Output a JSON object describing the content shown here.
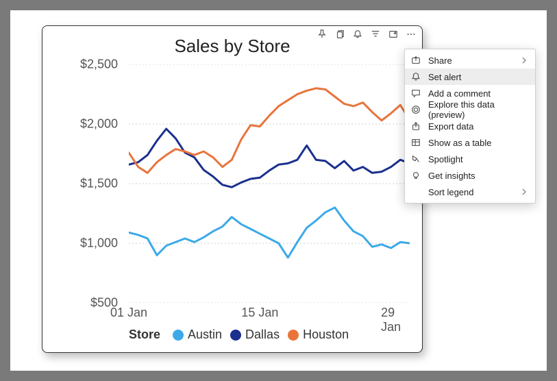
{
  "chart": {
    "title": "Sales by Store",
    "type": "line",
    "background_color": "#ffffff",
    "grid_color": "#cccccc",
    "grid_dash": "2,3",
    "title_fontsize": 26,
    "axis_label_fontsize": 18,
    "axis_label_color": "#555555",
    "y": {
      "min": 500,
      "max": 2500,
      "ticks": [
        500,
        1000,
        1500,
        2000,
        2500
      ],
      "tick_labels": [
        "$500",
        "$1,000",
        "$1,500",
        "$2,000",
        "$2,500"
      ]
    },
    "x": {
      "min": 1,
      "max": 31,
      "ticks": [
        1,
        15,
        29
      ],
      "tick_labels": [
        "01 Jan",
        "15 Jan",
        "29 Jan"
      ]
    },
    "series": [
      {
        "name": "Austin",
        "color": "#3ba9e8",
        "line_width": 3,
        "values": [
          1090,
          1070,
          1040,
          900,
          980,
          1010,
          1040,
          1010,
          1050,
          1100,
          1140,
          1220,
          1160,
          1120,
          1080,
          1040,
          1000,
          880,
          1010,
          1130,
          1190,
          1260,
          1300,
          1190,
          1100,
          1060,
          970,
          990,
          960,
          1010,
          1000
        ]
      },
      {
        "name": "Dallas",
        "color": "#1a2f8e",
        "line_width": 3,
        "values": [
          1660,
          1680,
          1740,
          1860,
          1960,
          1880,
          1760,
          1720,
          1615,
          1560,
          1490,
          1470,
          1510,
          1540,
          1550,
          1610,
          1660,
          1670,
          1700,
          1820,
          1700,
          1690,
          1630,
          1690,
          1610,
          1640,
          1590,
          1600,
          1640,
          1700,
          1670
        ]
      },
      {
        "name": "Houston",
        "color": "#e8743b",
        "line_width": 3,
        "values": [
          1760,
          1640,
          1590,
          1680,
          1740,
          1790,
          1770,
          1740,
          1770,
          1720,
          1640,
          1700,
          1870,
          1990,
          1980,
          2070,
          2150,
          2200,
          2250,
          2280,
          2300,
          2290,
          2230,
          2170,
          2150,
          2180,
          2100,
          2030,
          2090,
          2160,
          2030
        ]
      }
    ],
    "legend": {
      "title": "Store",
      "items": [
        "Austin",
        "Dallas",
        "Houston"
      ],
      "title_fontweight": 700
    }
  },
  "toolbar": {
    "icons": [
      "pin-icon",
      "copy-icon",
      "alert-bell-icon",
      "filter-icon",
      "focus-mode-icon",
      "more-icon"
    ]
  },
  "context_menu": {
    "highlighted_index": 1,
    "items": [
      {
        "icon": "share-icon",
        "label": "Share",
        "submenu": true
      },
      {
        "icon": "alert-bell-icon",
        "label": "Set alert",
        "submenu": false
      },
      {
        "icon": "comment-icon",
        "label": "Add a comment",
        "submenu": false
      },
      {
        "icon": "explore-icon",
        "label": "Explore this data (preview)",
        "submenu": false
      },
      {
        "icon": "export-icon",
        "label": "Export data",
        "submenu": false
      },
      {
        "icon": "table-icon",
        "label": "Show as a table",
        "submenu": false
      },
      {
        "icon": "spotlight-icon",
        "label": "Spotlight",
        "submenu": false
      },
      {
        "icon": "insights-icon",
        "label": "Get insights",
        "submenu": false
      },
      {
        "icon": "",
        "label": "Sort legend",
        "submenu": true
      }
    ]
  }
}
